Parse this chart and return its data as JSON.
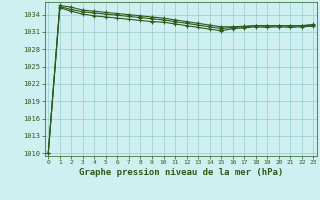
{
  "xlabel": "Graphe pression niveau de la mer (hPa)",
  "hours": [
    0,
    1,
    2,
    3,
    4,
    5,
    6,
    7,
    8,
    9,
    10,
    11,
    12,
    13,
    14,
    15,
    16,
    17,
    18,
    19,
    20,
    21,
    22,
    23
  ],
  "line1": [
    1010.0,
    1035.4,
    1034.9,
    1034.5,
    1034.3,
    1034.1,
    1033.9,
    1033.7,
    1033.5,
    1033.3,
    1033.1,
    1032.8,
    1032.5,
    1032.2,
    1031.9,
    1031.6,
    1031.8,
    1031.9,
    1032.1,
    1032.0,
    1032.1,
    1032.0,
    1032.1,
    1032.2
  ],
  "line2": [
    1010.0,
    1035.6,
    1035.3,
    1034.8,
    1034.6,
    1034.4,
    1034.2,
    1034.0,
    1033.8,
    1033.6,
    1033.4,
    1033.1,
    1032.8,
    1032.5,
    1032.2,
    1031.9,
    1031.9,
    1032.0,
    1032.1,
    1032.1,
    1032.1,
    1032.1,
    1032.1,
    1032.3
  ],
  "line3": [
    1010.0,
    1035.2,
    1034.6,
    1034.1,
    1033.8,
    1033.6,
    1033.4,
    1033.2,
    1033.0,
    1032.8,
    1032.7,
    1032.4,
    1032.1,
    1031.8,
    1031.5,
    1031.2,
    1031.6,
    1031.7,
    1031.9,
    1031.8,
    1031.9,
    1031.8,
    1031.9,
    1032.0
  ],
  "line_color": "#2d5a1b",
  "bg_color": "#cef0f0",
  "grid_color": "#99cccc",
  "ylim": [
    1009.5,
    1036.2
  ],
  "yticks": [
    1010,
    1013,
    1016,
    1019,
    1022,
    1025,
    1028,
    1031,
    1034
  ],
  "xticks": [
    0,
    1,
    2,
    3,
    4,
    5,
    6,
    7,
    8,
    9,
    10,
    11,
    12,
    13,
    14,
    15,
    16,
    17,
    18,
    19,
    20,
    21,
    22,
    23
  ],
  "marker": "+",
  "markersize": 3,
  "linewidth": 0.8
}
